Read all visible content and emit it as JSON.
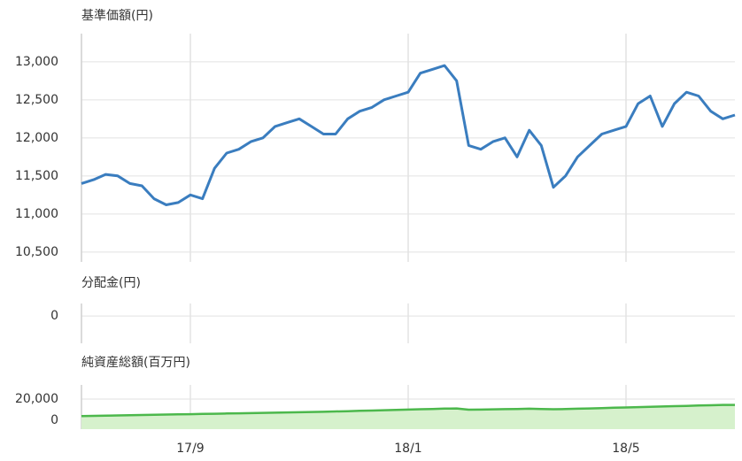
{
  "chart_data": [
    {
      "type": "line",
      "title": "基準価額(円)",
      "series": [
        {
          "color": "#3a7dbf",
          "values": [
            11400,
            11450,
            11520,
            11500,
            11400,
            11370,
            11200,
            11120,
            11150,
            11250,
            11200,
            11600,
            11800,
            11850,
            11950,
            12000,
            12150,
            12200,
            12250,
            12150,
            12050,
            12050,
            12250,
            12350,
            12400,
            12500,
            12550,
            12600,
            12850,
            12900,
            12950,
            12750,
            11900,
            11850,
            11950,
            12000,
            11750,
            12100,
            11900,
            11350,
            11500,
            11750,
            11900,
            12050,
            12100,
            12150,
            12450,
            12550,
            12150,
            12450,
            12600,
            12550,
            12350,
            12250,
            12300
          ]
        }
      ],
      "ylim": [
        10370,
        13370
      ],
      "yticks": [
        {
          "value": 10500,
          "label": "10,500"
        },
        {
          "value": 11000,
          "label": "11,000"
        },
        {
          "value": 11500,
          "label": "11,500"
        },
        {
          "value": 12000,
          "label": "12,000"
        },
        {
          "value": 12500,
          "label": "12,500"
        },
        {
          "value": 13000,
          "label": "13,000"
        }
      ],
      "grid": true
    },
    {
      "type": "line",
      "title": "分配金(円)",
      "ylim": [
        -2.2,
        1
      ],
      "yticks": [
        0
      ],
      "grid": true
    },
    {
      "type": "area",
      "title": "純資産総額(百万円)",
      "categories": [
        null,
        null,
        null,
        null,
        null,
        null,
        null,
        null,
        null,
        "17/9",
        null,
        null,
        null,
        null,
        null,
        null,
        null,
        null,
        null,
        null,
        null,
        null,
        null,
        null,
        null,
        null,
        null,
        "18/1",
        null,
        null,
        null,
        null,
        null,
        null,
        null,
        null,
        null,
        null,
        null,
        null,
        null,
        null,
        null,
        null,
        null,
        "18/5",
        null,
        null,
        null,
        null,
        null,
        null,
        null,
        null,
        null
      ],
      "series": [
        {
          "color": "#4cb84c",
          "fill": "#d6f1cc",
          "values": [
            4000,
            4200,
            4400,
            4600,
            4800,
            5000,
            5200,
            5400,
            5600,
            5800,
            6000,
            6200,
            6400,
            6600,
            6800,
            7000,
            7200,
            7400,
            7600,
            7800,
            8000,
            8300,
            8600,
            8900,
            9200,
            9500,
            9800,
            10100,
            10400,
            10700,
            11000,
            11200,
            10000,
            10100,
            10300,
            10500,
            10700,
            10900,
            10600,
            10400,
            10600,
            10900,
            11200,
            11500,
            11800,
            12100,
            12400,
            12700,
            13000,
            13300,
            13600,
            13900,
            14200,
            14500,
            14500
          ]
        }
      ],
      "ylim": [
        -8300,
        33300
      ],
      "yticks": [
        0,
        {
          "value": 20000,
          "label": "20,000"
        }
      ],
      "grid": true
    }
  ]
}
